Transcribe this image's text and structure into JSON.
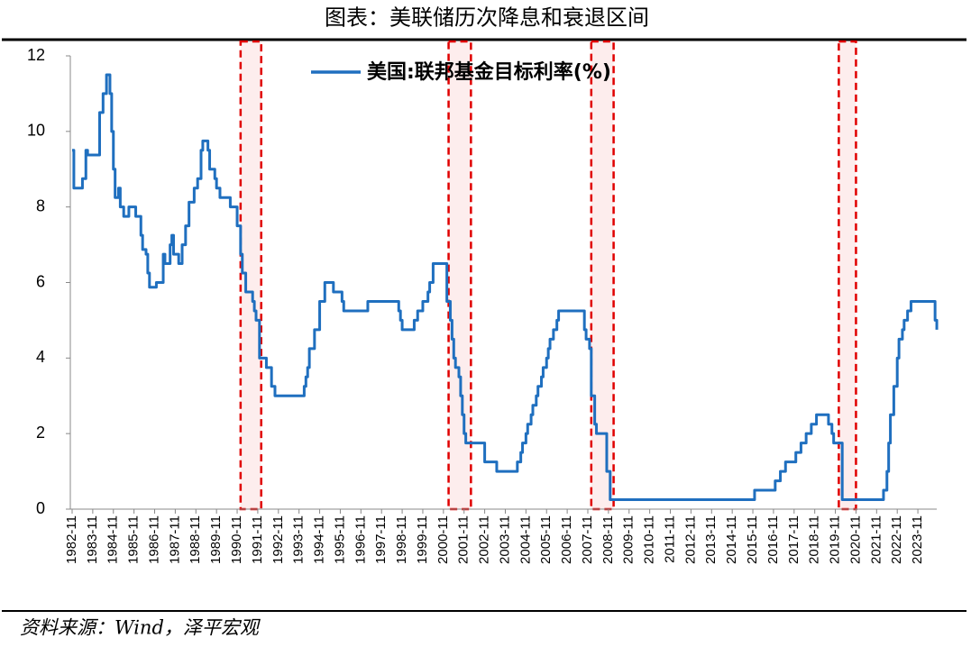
{
  "chart_data": {
    "type": "line",
    "title": "图表：美联储历次降息和衰退区间",
    "source": "资料来源：Wind，泽平宏观",
    "series": [
      {
        "name": "美国:联邦基金目标利率(%)",
        "color": "#1f6fbf",
        "step": true,
        "x": [
          "1982-11",
          "1982-12",
          "1983-03",
          "1983-05",
          "1983-07",
          "1983-08",
          "1984-02",
          "1984-03",
          "1984-05",
          "1984-07",
          "1984-08",
          "1984-09",
          "1984-10",
          "1984-11",
          "1984-12",
          "1985-02",
          "1985-03",
          "1985-05",
          "1985-08",
          "1985-12",
          "1986-03",
          "1986-04",
          "1986-06",
          "1986-07",
          "1986-08",
          "1986-12",
          "1987-04",
          "1987-05",
          "1987-08",
          "1987-09",
          "1987-10",
          "1987-11",
          "1988-01",
          "1988-03",
          "1988-05",
          "1988-07",
          "1988-10",
          "1988-12",
          "1989-02",
          "1989-03",
          "1989-05",
          "1989-06",
          "1989-07",
          "1989-10",
          "1989-11",
          "1990-01",
          "1990-06",
          "1990-07",
          "1990-11",
          "1991-01",
          "1991-02",
          "1991-04",
          "1991-08",
          "1991-09",
          "1991-10",
          "1991-12",
          "1992-04",
          "1992-07",
          "1992-09",
          "1994-01",
          "1994-02",
          "1994-03",
          "1994-04",
          "1994-05",
          "1994-08",
          "1994-11",
          "1995-02",
          "1995-06",
          "1995-07",
          "1995-11",
          "1995-12",
          "1996-01",
          "1997-02",
          "1997-03",
          "1998-08",
          "1998-09",
          "1998-10",
          "1998-11",
          "1999-06",
          "1999-08",
          "1999-11",
          "2000-02",
          "2000-03",
          "2000-05",
          "2000-12",
          "2001-01",
          "2001-03",
          "2001-04",
          "2001-05",
          "2001-06",
          "2001-08",
          "2001-09",
          "2001-10",
          "2001-11",
          "2001-12",
          "2002-10",
          "2002-11",
          "2003-05",
          "2003-06",
          "2004-05",
          "2004-06",
          "2004-08",
          "2004-09",
          "2004-11",
          "2004-12",
          "2005-02",
          "2005-03",
          "2005-05",
          "2005-06",
          "2005-08",
          "2005-09",
          "2005-11",
          "2005-12",
          "2006-01",
          "2006-03",
          "2006-05",
          "2006-06",
          "2007-08",
          "2007-09",
          "2007-10",
          "2007-12",
          "2008-01",
          "2008-03",
          "2008-04",
          "2008-09",
          "2008-10",
          "2008-12",
          "2015-11",
          "2015-12",
          "2016-11",
          "2016-12",
          "2017-03",
          "2017-06",
          "2017-12",
          "2018-03",
          "2018-06",
          "2018-09",
          "2018-12",
          "2019-06",
          "2019-07",
          "2019-09",
          "2019-10",
          "2020-02",
          "2020-03",
          "2022-02",
          "2022-03",
          "2022-05",
          "2022-06",
          "2022-07",
          "2022-09",
          "2022-11",
          "2022-12",
          "2023-02",
          "2023-03",
          "2023-05",
          "2023-07",
          "2024-08",
          "2024-09",
          "2024-10"
        ],
        "values": [
          9.5,
          8.5,
          8.5,
          8.75,
          9.5,
          9.375,
          9.375,
          10.5,
          11.0,
          11.5,
          11.5,
          11.0,
          10.0,
          9.0,
          8.25,
          8.5,
          8.0,
          7.75,
          8.0,
          7.75,
          7.25,
          6.875,
          6.75,
          6.25,
          5.875,
          6.0,
          6.75,
          6.5,
          7.0,
          7.25,
          6.75,
          6.75,
          6.5,
          7.0,
          7.5,
          8.125,
          8.5,
          8.75,
          9.5,
          9.75,
          9.75,
          9.5,
          9.0,
          8.75,
          8.5,
          8.25,
          8.25,
          8.0,
          7.5,
          6.75,
          6.25,
          5.75,
          5.5,
          5.25,
          5.0,
          4.0,
          3.75,
          3.25,
          3.0,
          3.0,
          3.25,
          3.5,
          3.75,
          4.25,
          4.75,
          5.5,
          6.0,
          6.0,
          5.75,
          5.75,
          5.5,
          5.25,
          5.25,
          5.5,
          5.5,
          5.25,
          5.0,
          4.75,
          5.0,
          5.25,
          5.5,
          5.75,
          6.0,
          6.5,
          6.5,
          5.5,
          5.0,
          4.5,
          4.0,
          3.75,
          3.5,
          3.0,
          2.5,
          2.0,
          1.75,
          1.75,
          1.25,
          1.25,
          1.0,
          1.0,
          1.25,
          1.5,
          1.75,
          2.0,
          2.25,
          2.5,
          2.75,
          3.0,
          3.25,
          3.5,
          3.75,
          4.0,
          4.25,
          4.5,
          4.75,
          5.0,
          5.25,
          5.25,
          4.75,
          4.5,
          4.25,
          3.0,
          2.25,
          2.0,
          2.0,
          1.0,
          0.25,
          0.25,
          0.5,
          0.5,
          0.75,
          1.0,
          1.25,
          1.5,
          1.75,
          2.0,
          2.25,
          2.5,
          2.5,
          2.25,
          2.0,
          1.75,
          1.75,
          0.25,
          0.25,
          0.5,
          1.0,
          1.75,
          2.5,
          3.25,
          4.0,
          4.5,
          4.75,
          5.0,
          5.25,
          5.5,
          5.5,
          5.0,
          4.75
        ]
      }
    ],
    "recessions": [
      {
        "start": "1991-01",
        "end": "1992-01"
      },
      {
        "start": "2001-02",
        "end": "2002-03"
      },
      {
        "start": "2008-01",
        "end": "2009-02"
      },
      {
        "start": "2020-01",
        "end": "2020-11"
      }
    ],
    "recession_color": "#e00000",
    "xlim": [
      "1982-11",
      "2024-10"
    ],
    "xticks": [
      "1982-11",
      "1983-11",
      "1984-11",
      "1985-11",
      "1986-11",
      "1987-11",
      "1988-11",
      "1989-11",
      "1990-11",
      "1991-11",
      "1992-11",
      "1993-11",
      "1994-11",
      "1995-11",
      "1996-11",
      "1997-11",
      "1998-11",
      "1999-11",
      "2000-11",
      "2001-11",
      "2002-11",
      "2003-11",
      "2004-11",
      "2005-11",
      "2006-11",
      "2007-11",
      "2008-11",
      "2009-11",
      "2010-11",
      "2011-11",
      "2012-11",
      "2013-11",
      "2014-11",
      "2015-11",
      "2016-11",
      "2017-11",
      "2018-11",
      "2019-11",
      "2020-11",
      "2021-11",
      "2022-11",
      "2023-11"
    ],
    "ylim": [
      0,
      12
    ],
    "yticks": [
      0,
      2,
      4,
      6,
      8,
      10,
      12
    ],
    "grid": false,
    "legend": "top"
  }
}
